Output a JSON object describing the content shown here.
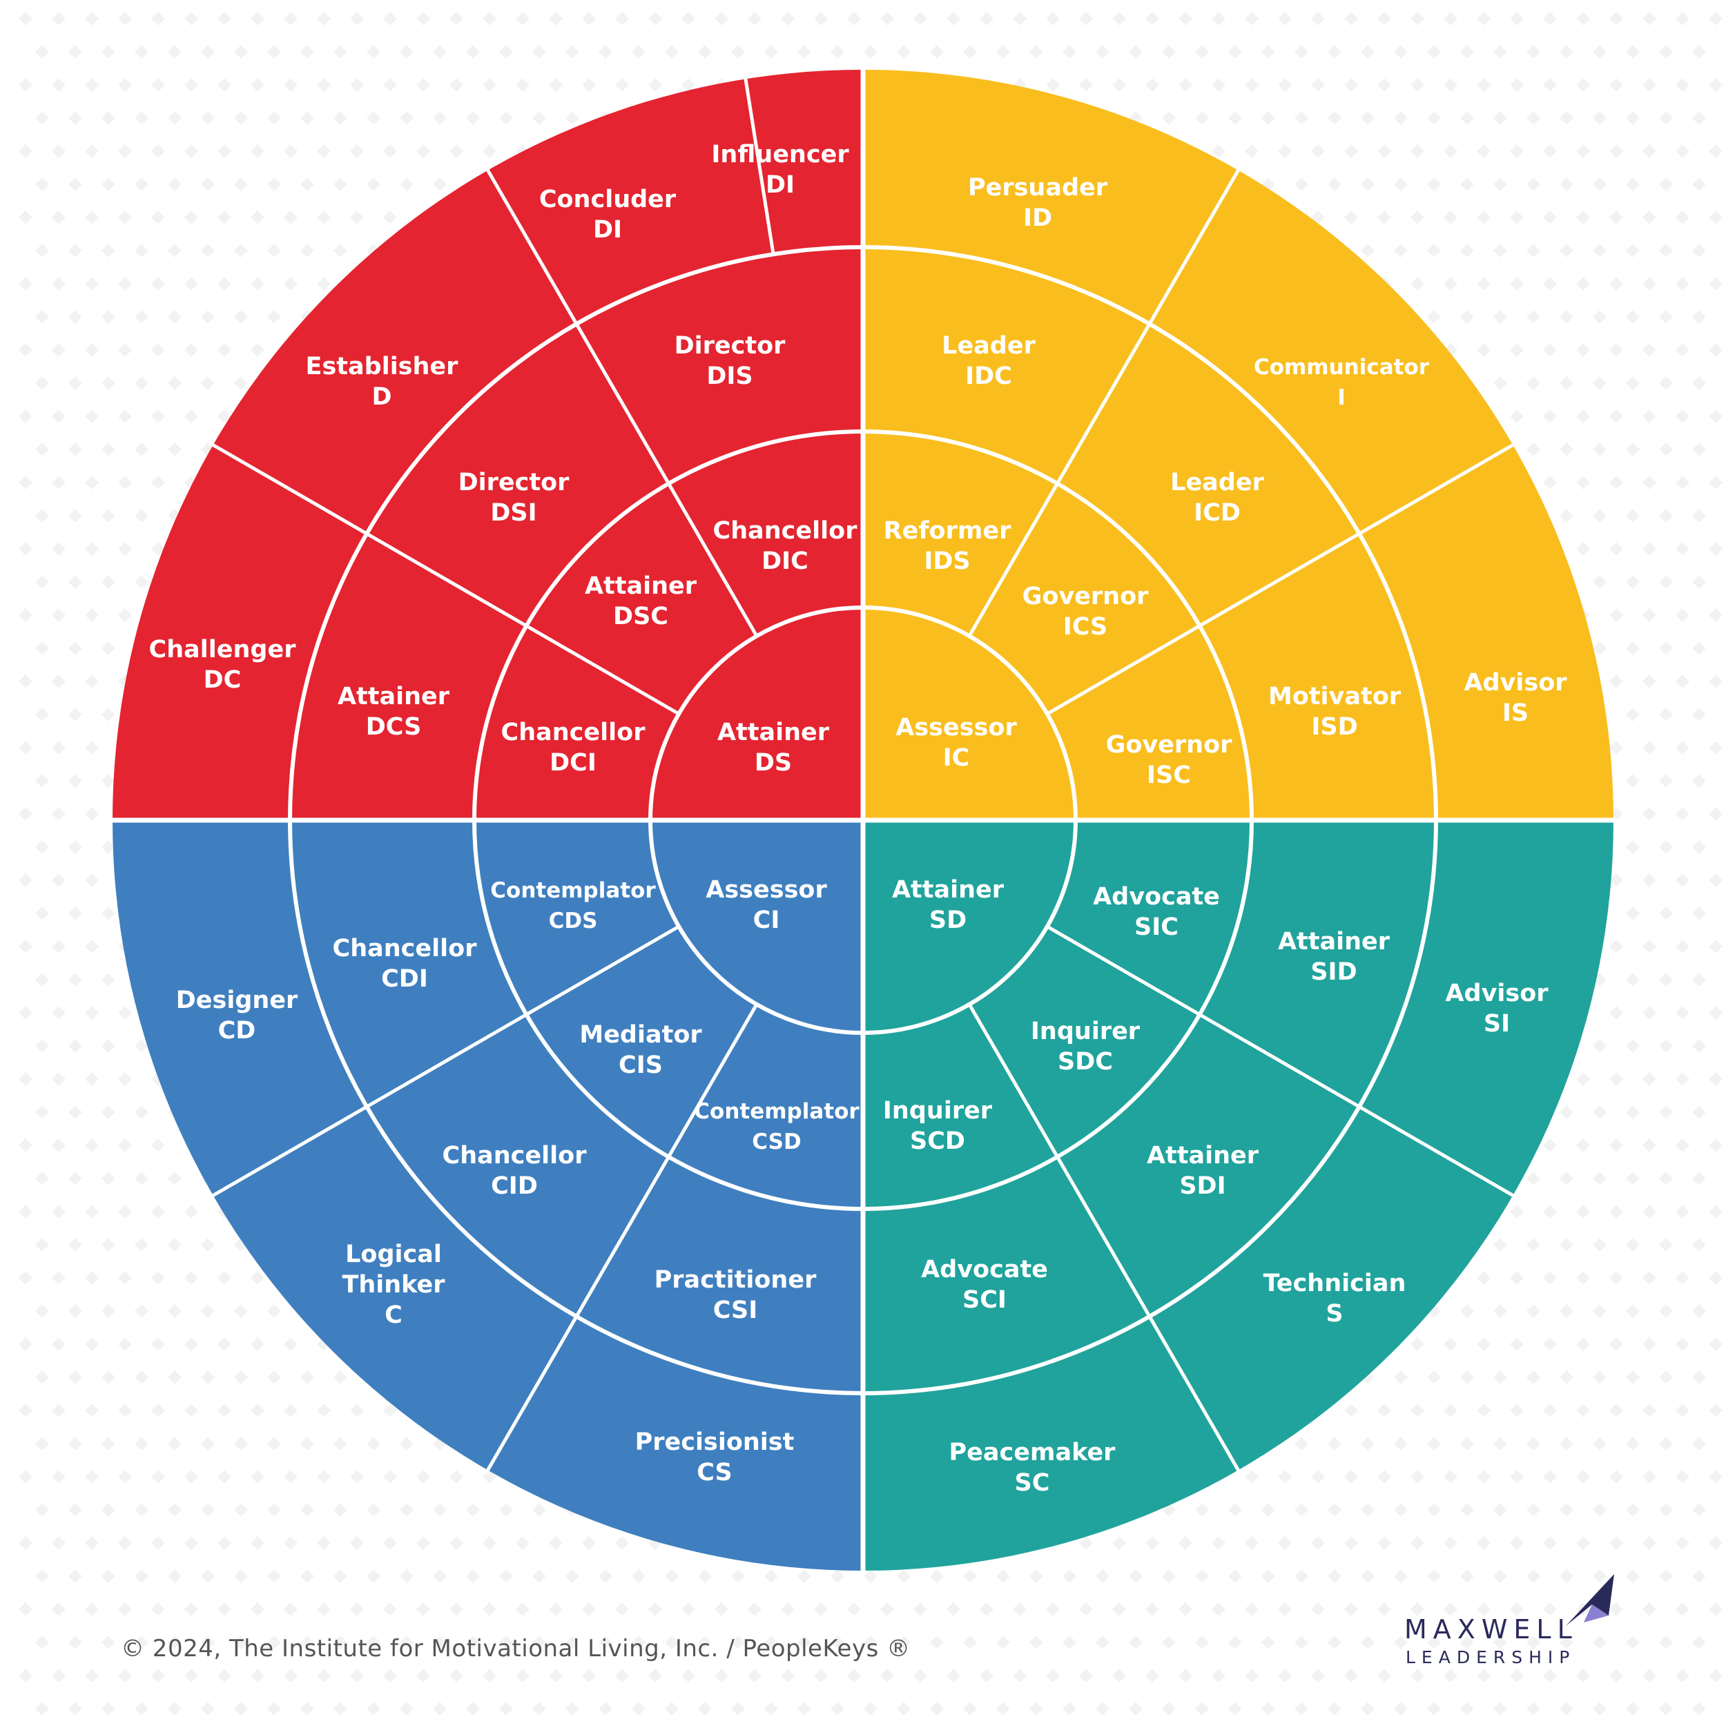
{
  "colors": {
    "D": "#e42430",
    "I": "#f9be1e",
    "C": "#3f7fbf",
    "S": "#20a39c",
    "divider": "#ffffff"
  },
  "quadrants": {
    "D": {
      "ring1": [
        {
          "name": "Attainer",
          "code": "DS"
        }
      ],
      "ring2": [
        {
          "name": "Chancellor",
          "code": "DCI"
        },
        {
          "name": "Attainer",
          "code": "DSC"
        },
        {
          "name": "Chancellor",
          "code": "DIC"
        }
      ],
      "ring3": [
        {
          "name": "Attainer",
          "code": "DCS"
        },
        {
          "name": "Director",
          "code": "DSI"
        },
        {
          "name": "Director",
          "code": "DIS"
        }
      ],
      "ring4": [
        {
          "name": "Challenger",
          "code": "DC"
        },
        {
          "name": "Establisher",
          "code": "D"
        },
        {
          "name": "Concluder",
          "code": "DI"
        },
        {
          "name": "Influencer",
          "code": "DI"
        }
      ]
    },
    "I": {
      "ring1": [
        {
          "name": "Assessor",
          "code": "IC"
        }
      ],
      "ring2": [
        {
          "name": "Reformer",
          "code": "IDS"
        },
        {
          "name": "Governor",
          "code": "ICS"
        },
        {
          "name": "Governor",
          "code": "ISC"
        }
      ],
      "ring3": [
        {
          "name": "Leader",
          "code": "IDC"
        },
        {
          "name": "Leader",
          "code": "ICD"
        },
        {
          "name": "Motivator",
          "code": "ISD"
        }
      ],
      "ring4": [
        {
          "name": "Persuader",
          "code": "ID"
        },
        {
          "name": "Communicator",
          "code": "I"
        },
        {
          "name": "Advisor",
          "code": "IS"
        }
      ]
    },
    "C": {
      "ring1": [
        {
          "name": "Assessor",
          "code": "CI"
        }
      ],
      "ring2": [
        {
          "name": "Contemplator",
          "code": "CDS"
        },
        {
          "name": "Mediator",
          "code": "CIS"
        },
        {
          "name": "Contemplator",
          "code": "CSD"
        }
      ],
      "ring3": [
        {
          "name": "Chancellor",
          "code": "CDI"
        },
        {
          "name": "Chancellor",
          "code": "CID"
        },
        {
          "name": "Practitioner",
          "code": "CSI"
        }
      ],
      "ring4": [
        {
          "name": "Designer",
          "code": "CD"
        },
        {
          "name": "Logical Thinker",
          "code": "C"
        },
        {
          "name": "Precisionist",
          "code": "CS"
        }
      ]
    },
    "S": {
      "ring1": [
        {
          "name": "Attainer",
          "code": "SD"
        }
      ],
      "ring2": [
        {
          "name": "Advocate",
          "code": "SIC"
        },
        {
          "name": "Inquirer",
          "code": "SDC"
        },
        {
          "name": "Inquirer",
          "code": "SCD"
        }
      ],
      "ring3": [
        {
          "name": "Attainer",
          "code": "SID"
        },
        {
          "name": "Attainer",
          "code": "SDI"
        },
        {
          "name": "Advocate",
          "code": "SCI"
        }
      ],
      "ring4": [
        {
          "name": "Advisor",
          "code": "SI"
        },
        {
          "name": "Technician",
          "code": "S"
        },
        {
          "name": "Peacemaker",
          "code": "SC"
        }
      ]
    }
  },
  "footer": {
    "copyright": "© 2024, The Institute for Motivational Living, Inc. / PeopleKeys ®"
  },
  "brand": {
    "line1": "MAXWELL",
    "line2": "LEADERSHIP",
    "mark_icon": "arrow-flag-icon"
  }
}
